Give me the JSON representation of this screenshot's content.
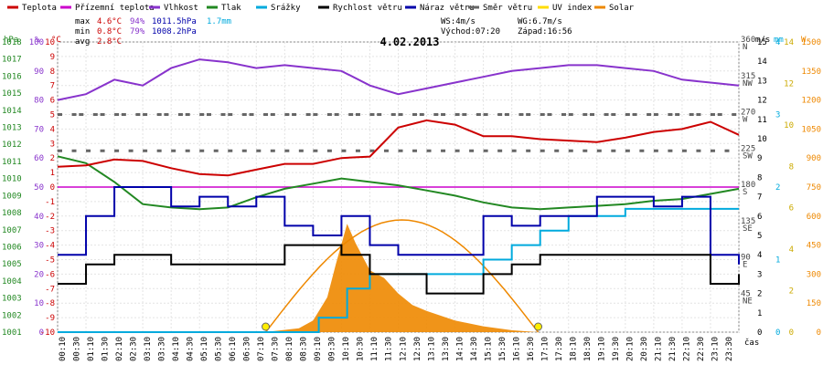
{
  "chart_data": {
    "type": "line",
    "title": "4.02.2013",
    "x_unit_label": "čas",
    "x_ticks": [
      "00:10",
      "00:30",
      "01:10",
      "01:30",
      "02:10",
      "02:30",
      "03:10",
      "03:30",
      "04:10",
      "04:30",
      "05:10",
      "05:30",
      "06:10",
      "06:30",
      "07:10",
      "07:30",
      "08:10",
      "08:30",
      "09:10",
      "09:30",
      "10:10",
      "10:30",
      "11:10",
      "11:30",
      "12:10",
      "12:30",
      "13:10",
      "13:30",
      "14:10",
      "14:30",
      "15:10",
      "15:30",
      "16:10",
      "16:30",
      "17:10",
      "17:30",
      "18:10",
      "18:30",
      "19:10",
      "19:30",
      "20:10",
      "20:30",
      "21:10",
      "21:30",
      "22:10",
      "22:30",
      "23:10",
      "23:30"
    ],
    "legend": [
      {
        "name": "Teplota",
        "color": "#cc0000"
      },
      {
        "name": "Přízemní teplota",
        "color": "#cc00cc"
      },
      {
        "name": "Vlhkost",
        "color": "#8833cc"
      },
      {
        "name": "Tlak",
        "color": "#228822"
      },
      {
        "name": "Srážky",
        "color": "#00aadd"
      },
      {
        "name": "Rychlost větru",
        "color": "#000000"
      },
      {
        "name": "Náraz větru",
        "color": "#0000aa"
      },
      {
        "name": "Směr větru",
        "color": "#666666"
      },
      {
        "name": "UV index",
        "color": "#ffdd00"
      },
      {
        "name": "Solar",
        "color": "#ee8800"
      }
    ],
    "stats": {
      "max_label": "max",
      "max_temp": "4.6°C",
      "max_hum": "94%",
      "max_press": "1011.5hPa",
      "rain": "1.7mm",
      "min_label": "min",
      "min_temp": "0.8°C",
      "min_hum": "79%",
      "min_press": "1008.2hPa",
      "avg_label": "avg",
      "avg_temp": "2.8°C",
      "wind": "WS:4m/s",
      "gust": "WG:6.7m/s",
      "sunrise": "Východ:07:20",
      "sunset": "Západ:16:56"
    },
    "left_axes": {
      "hpa_label": "hPa",
      "hpa_ticks": [
        1001,
        1002,
        1003,
        1004,
        1005,
        1006,
        1007,
        1008,
        1009,
        1010,
        1011,
        1012,
        1013,
        1014,
        1015,
        1016,
        1017,
        1018
      ],
      "pct_label": "%",
      "pct_ticks": [
        0,
        10,
        20,
        30,
        40,
        50,
        60,
        70,
        80,
        90,
        100
      ],
      "c_label": "°C",
      "c_ticks": [
        -10,
        -9,
        -8,
        -7,
        -6,
        -5,
        -4,
        -3,
        -2,
        -1,
        0,
        1,
        2,
        3,
        4,
        5,
        6,
        7,
        8,
        9,
        10
      ]
    },
    "right_axes": {
      "ms_label": "m/s",
      "ms_ticks": [
        0,
        1,
        2,
        3,
        4,
        5,
        6,
        7,
        8,
        9,
        10,
        11,
        12,
        13,
        14,
        15
      ],
      "mm_label": "mm",
      "mm_ticks": [
        0,
        1,
        2,
        3,
        4
      ],
      "uv_ticks": [
        0,
        2,
        4,
        6,
        8,
        10,
        12,
        14
      ],
      "w_label": "W",
      "w_ticks": [
        0,
        150,
        300,
        450,
        600,
        750,
        900,
        1050,
        1200,
        1350,
        1500
      ],
      "dir_degrees": [
        "45",
        "90",
        "135",
        "180",
        "225",
        "270",
        "315",
        "360"
      ],
      "dir_names": [
        "NE",
        "E",
        "SE",
        "S",
        "SW",
        "W",
        "NW",
        "N"
      ]
    },
    "series": [
      {
        "name": "Teplota",
        "unit": "°C",
        "hours": [
          0,
          1,
          2,
          3,
          4,
          5,
          6,
          7,
          8,
          9,
          10,
          11,
          12,
          13,
          14,
          15,
          16,
          17,
          18,
          19,
          20,
          21,
          22,
          23,
          24
        ],
        "values": [
          1.4,
          1.5,
          1.9,
          1.8,
          1.3,
          0.9,
          0.8,
          1.2,
          1.6,
          1.6,
          2.0,
          2.1,
          4.1,
          4.6,
          4.3,
          3.5,
          3.5,
          3.3,
          3.2,
          3.1,
          3.4,
          3.8,
          4.0,
          4.5,
          3.6
        ]
      },
      {
        "name": "Přízemní teplota",
        "unit": "°C",
        "hours": [
          0,
          24
        ],
        "values": [
          0,
          0
        ]
      },
      {
        "name": "Vlhkost",
        "unit": "%",
        "hours": [
          0,
          1,
          2,
          3,
          4,
          5,
          6,
          7,
          8,
          9,
          10,
          11,
          12,
          13,
          14,
          15,
          16,
          17,
          18,
          19,
          20,
          21,
          22,
          23,
          24
        ],
        "values": [
          80,
          82,
          87,
          85,
          91,
          94,
          93,
          91,
          92,
          91,
          90,
          85,
          82,
          84,
          86,
          88,
          90,
          91,
          92,
          92,
          91,
          90,
          87,
          86,
          85
        ]
      },
      {
        "name": "Tlak",
        "unit": "hPa",
        "hours": [
          0,
          1,
          2,
          3,
          4,
          5,
          6,
          7,
          8,
          9,
          10,
          11,
          12,
          13,
          14,
          15,
          16,
          17,
          18,
          19,
          20,
          21,
          22,
          23,
          24
        ],
        "values": [
          1011.3,
          1010.9,
          1009.8,
          1008.5,
          1008.3,
          1008.2,
          1008.3,
          1008.9,
          1009.4,
          1009.7,
          1010.0,
          1009.8,
          1009.6,
          1009.3,
          1009.0,
          1008.6,
          1008.3,
          1008.2,
          1008.3,
          1008.4,
          1008.5,
          1008.7,
          1008.8,
          1009.1,
          1009.4
        ]
      },
      {
        "name": "Srážky",
        "unit": "mm",
        "hours": [
          0,
          9,
          9.2,
          10,
          10.2,
          11,
          12,
          14,
          15,
          16,
          17,
          18,
          20,
          24
        ],
        "values": [
          0,
          0,
          0.2,
          0.2,
          0.6,
          0.8,
          0.8,
          0.8,
          1.0,
          1.2,
          1.4,
          1.6,
          1.7,
          1.7
        ]
      },
      {
        "name": "Rychlost větru",
        "unit": "m/s",
        "hours": [
          0,
          1,
          2,
          3,
          4,
          5,
          6,
          7,
          8,
          9,
          10,
          11,
          12,
          13,
          14,
          15,
          16,
          17,
          18,
          19,
          20,
          21,
          22,
          23,
          24
        ],
        "values": [
          2.5,
          3.5,
          4,
          4,
          3.5,
          3.5,
          3.5,
          3.5,
          4.5,
          4.5,
          4,
          3,
          3,
          2,
          2,
          3,
          3.5,
          4,
          4,
          4,
          4,
          4,
          4,
          2.5,
          3
        ]
      },
      {
        "name": "Náraz větru",
        "unit": "m/s",
        "hours": [
          0,
          1,
          2,
          3,
          4,
          5,
          6,
          7,
          8,
          9,
          10,
          11,
          12,
          13,
          14,
          15,
          16,
          17,
          18,
          19,
          20,
          21,
          22,
          23,
          24
        ],
        "values": [
          4,
          6,
          7.5,
          7.5,
          6.5,
          7,
          6.5,
          7,
          5.5,
          5,
          6,
          4.5,
          4,
          4,
          4,
          6,
          5.5,
          6,
          6,
          7,
          7,
          6.5,
          7,
          4,
          3.5
        ]
      },
      {
        "name": "Solar",
        "unit": "W",
        "hours": [
          7.3,
          8.5,
          9,
          9.5,
          9.8,
          10.2,
          10.5,
          11,
          11.5,
          12,
          12.5,
          13,
          14,
          15,
          16,
          16.9
        ],
        "values": [
          0,
          20,
          60,
          180,
          350,
          560,
          460,
          320,
          280,
          200,
          140,
          110,
          60,
          30,
          10,
          0
        ]
      }
    ],
    "wind_direction_note": "Směr větru plotted as dots around W (270°) and SW (225°)",
    "sun_arc": {
      "sunrise_hour": 7.33,
      "sunset_hour": 16.93,
      "max_w": 580
    }
  }
}
